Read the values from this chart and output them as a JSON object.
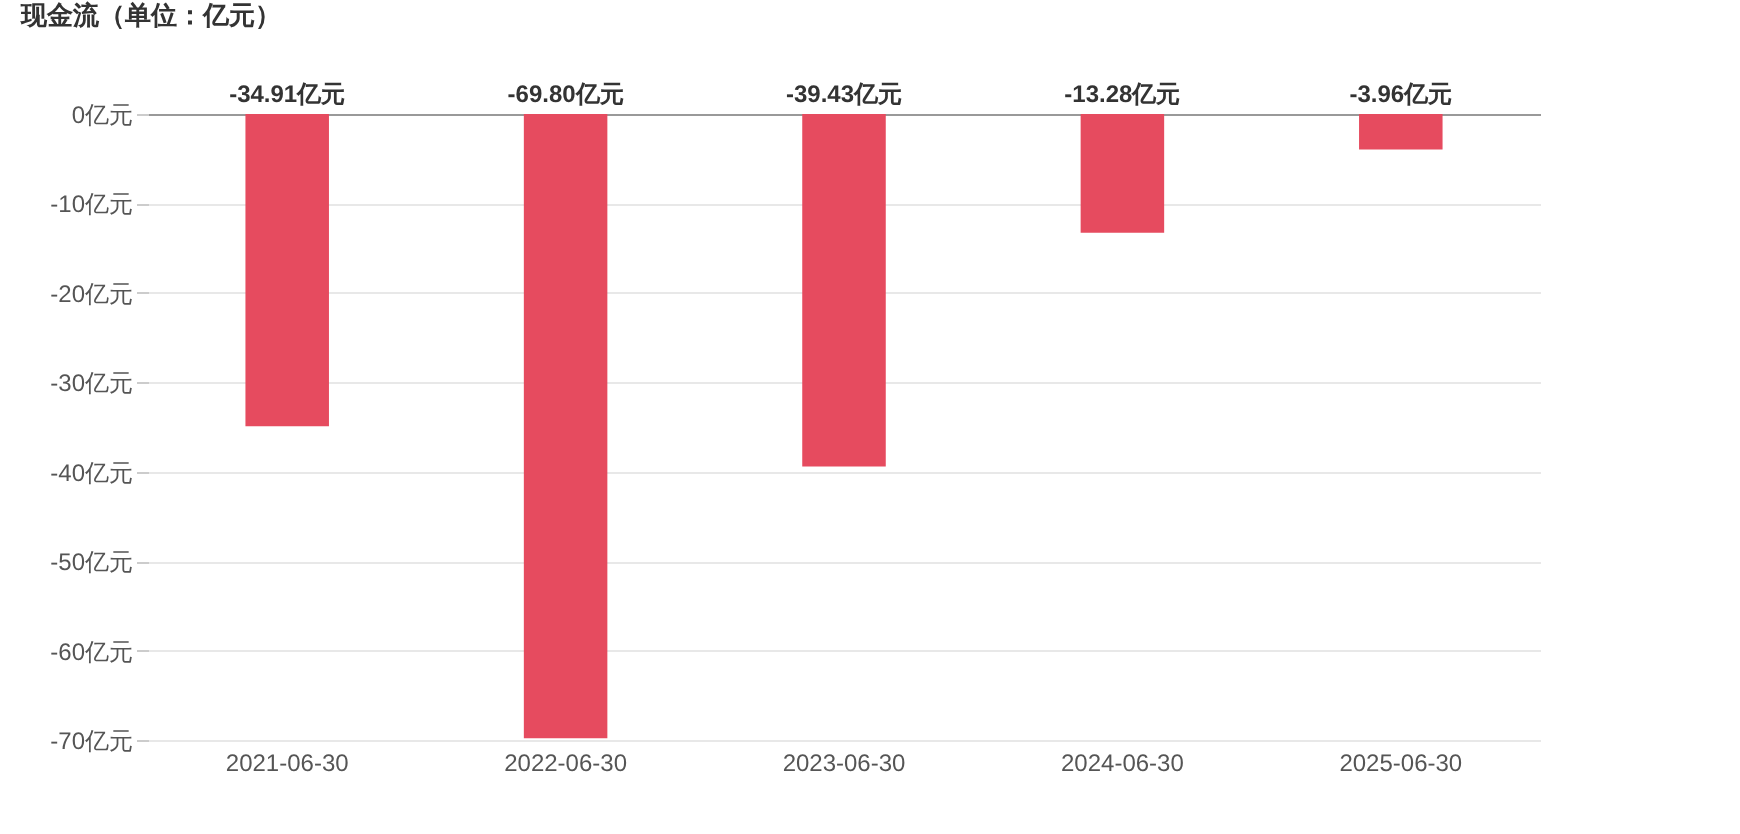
{
  "chart_data": {
    "type": "bar",
    "title": "现金流（单位：亿元）",
    "categories": [
      "2021-06-30",
      "2022-06-30",
      "2023-06-30",
      "2024-06-30",
      "2025-06-30"
    ],
    "values": [
      -34.91,
      -69.8,
      -39.43,
      -13.28,
      -3.96
    ],
    "value_labels": [
      "-34.91亿元",
      "-69.80亿元",
      "-39.43亿元",
      "-13.28亿元",
      "-3.96亿元"
    ],
    "color": "#e64b5f",
    "ylim": [
      -70,
      0
    ],
    "yticks": [
      {
        "value": 0,
        "label": "0亿元"
      },
      {
        "value": -10,
        "label": "-10亿元"
      },
      {
        "value": -20,
        "label": "-20亿元"
      },
      {
        "value": -30,
        "label": "-30亿元"
      },
      {
        "value": -40,
        "label": "-40亿元"
      },
      {
        "value": -50,
        "label": "-50亿元"
      },
      {
        "value": -60,
        "label": "-60亿元"
      },
      {
        "value": -70,
        "label": "-70亿元"
      }
    ],
    "grid": "y"
  }
}
